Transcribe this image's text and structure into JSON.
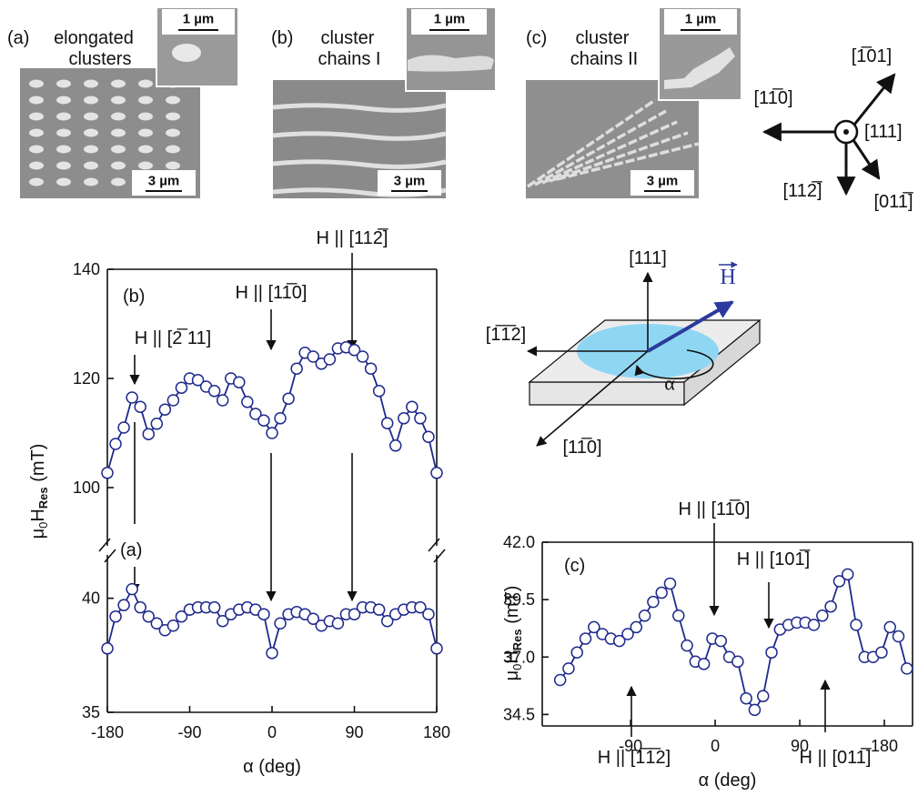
{
  "figure": {
    "panels": [
      {
        "label": "(a)",
        "caption": [
          "elongated",
          "clusters"
        ],
        "inset_scale": "1 µm",
        "scale": "3 µm"
      },
      {
        "label": "(b)",
        "caption": [
          "cluster",
          "chains I"
        ],
        "inset_scale": "1 µm",
        "scale": "3 µm"
      },
      {
        "label": "(c)",
        "caption": [
          "cluster",
          "chains II"
        ],
        "inset_scale": "1 µm",
        "scale": "3 µm"
      }
    ],
    "directions": [
      "[1̅01]",
      "[11̅0]",
      "[111]",
      "[112̅]",
      "[011̅]"
    ],
    "diagram": {
      "axes": [
        "[111]",
        "[1̅1̅2]",
        "[11̅0]"
      ],
      "field": "H",
      "angle": "α"
    }
  },
  "chart_data": [
    {
      "type": "line",
      "ylabel": [
        "μ",
        "0",
        "H",
        "Res",
        " (mT)"
      ],
      "annotations": [
        "(b)",
        "H || [2̅ 11]",
        "H || [11̅0]",
        "H || [112̅]"
      ],
      "x": [
        -180,
        -171,
        -162,
        -153,
        -144,
        -135,
        -126,
        -117,
        -108,
        -99,
        -90,
        -81,
        -72,
        -63,
        -54,
        -45,
        -36,
        -27,
        -18,
        -9,
        0,
        9,
        18,
        27,
        36,
        45,
        54,
        63,
        72,
        81,
        90,
        99,
        108,
        117,
        126,
        135,
        144,
        153,
        162,
        171,
        180
      ],
      "series": [
        {
          "color": "#1f2a8c",
          "values": [
            102.7,
            108,
            111,
            116.5,
            114.8,
            109.8,
            111.7,
            114.3,
            116,
            118.3,
            120,
            119.7,
            118.5,
            117.7,
            116,
            120,
            119.3,
            115.7,
            113.5,
            112.3,
            110,
            112.7,
            116.3,
            121.8,
            124.7,
            124,
            122.7,
            123.5,
            125.5,
            125.7,
            125.2,
            124,
            121.8,
            117.7,
            111.8,
            107.7,
            112.7,
            114.8,
            112.7,
            109.3,
            102.7
          ]
        }
      ],
      "xlim": [
        -180,
        180
      ],
      "ylim": [
        88.5,
        140
      ],
      "yticks": [
        100,
        120,
        140
      ]
    },
    {
      "type": "line",
      "annotations": [
        "(a)"
      ],
      "xlabel": "α (deg)",
      "x": [
        -180,
        -171,
        -162,
        -153,
        -144,
        -135,
        -126,
        -117,
        -108,
        -99,
        -90,
        -81,
        -72,
        -63,
        -54,
        -45,
        -36,
        -27,
        -18,
        -9,
        0,
        9,
        18,
        27,
        36,
        45,
        54,
        63,
        72,
        81,
        90,
        99,
        108,
        117,
        126,
        135,
        144,
        153,
        162,
        171,
        180
      ],
      "series": [
        {
          "color": "#1f2a8c",
          "values": [
            37.8,
            39.2,
            39.7,
            40.4,
            39.6,
            39.2,
            38.9,
            38.6,
            38.8,
            39.2,
            39.5,
            39.6,
            39.6,
            39.6,
            39,
            39.3,
            39.5,
            39.6,
            39.5,
            39.3,
            37.6,
            38.9,
            39.3,
            39.4,
            39.3,
            39.1,
            38.8,
            39,
            38.9,
            39.3,
            39.3,
            39.6,
            39.6,
            39.5,
            39,
            39.3,
            39.5,
            39.6,
            39.6,
            39.3,
            37.8
          ]
        }
      ],
      "xlim": [
        -180,
        180
      ],
      "xticks": [
        -180,
        -90,
        0,
        90,
        180
      ],
      "ylim": [
        35,
        42.1
      ],
      "yticks": [
        35,
        40
      ]
    },
    {
      "type": "line",
      "ylabel": [
        "μ",
        "0",
        "H",
        "Res",
        " (mT)"
      ],
      "xlabel": "α (deg)",
      "annotations": [
        "(c)",
        "H || [11̅0]",
        "H || [101̅]",
        "H || [1̅1̅2]",
        "H || [011̅]"
      ],
      "x": [
        -165,
        -156,
        -147,
        -138,
        -129,
        -120,
        -111,
        -102,
        -93,
        -84,
        -75,
        -66,
        -57,
        -48,
        -39,
        -30,
        -21,
        -12,
        -3,
        6,
        15,
        24,
        33,
        42,
        51,
        60,
        69,
        78,
        87,
        96,
        105,
        114,
        123,
        132,
        141,
        150,
        159,
        168,
        177,
        186,
        195,
        204
      ],
      "series": [
        {
          "color": "#1f2a8c",
          "values": [
            36,
            36.5,
            37.2,
            37.8,
            38.3,
            38,
            37.8,
            37.7,
            38,
            38.3,
            38.8,
            39.4,
            39.8,
            40.2,
            38.8,
            37.5,
            36.8,
            36.7,
            37.8,
            37.7,
            37,
            36.8,
            35.2,
            34.7,
            35.3,
            37.2,
            38.2,
            38.4,
            38.5,
            38.5,
            38.4,
            38.8,
            39.2,
            40.3,
            40.6,
            38.4,
            37,
            37,
            37.2,
            38.3,
            37.9,
            36.5
          ]
        }
      ],
      "xlim": [
        -184,
        210
      ],
      "xticks": [
        -90,
        0,
        90,
        180
      ],
      "ylim": [
        34,
        42
      ],
      "yticks": [
        {
          "value": 42,
          "label": "42.0"
        },
        39.5,
        {
          "value": 37,
          "label": "37.0"
        },
        34.5
      ]
    }
  ]
}
